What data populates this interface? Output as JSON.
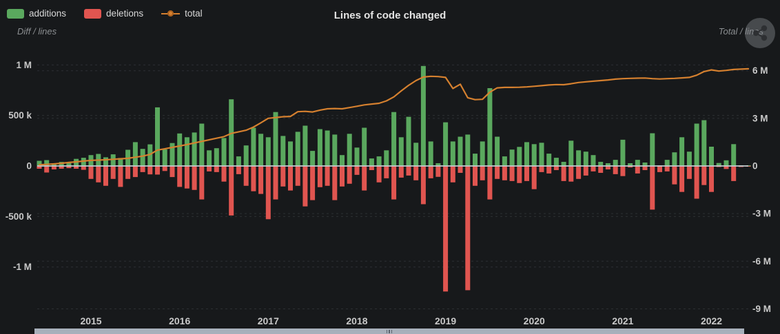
{
  "title": "Lines of code changed",
  "left_axis_name": "Diff / lines",
  "right_axis_name": "Total / lines",
  "legend": {
    "items": [
      {
        "label": "additions",
        "color": "#5aa85e",
        "marker": "square"
      },
      {
        "label": "deletions",
        "color": "#e05550",
        "marker": "square"
      },
      {
        "label": "total",
        "color": "#d5802f",
        "marker": "line-dot"
      }
    ]
  },
  "colors": {
    "background": "#17191b",
    "additions": "#5aa85e",
    "deletions": "#e05550",
    "total": "#d5802f",
    "zero_line": "#c6cad0",
    "grid": "#2d3034",
    "tick_text": "#c9c9c9",
    "scrollbar": "#a8b0bb"
  },
  "chart_data": {
    "type": "bar",
    "title": "Lines of code changed",
    "xlabel": "",
    "ylabel_left": "Diff / lines",
    "ylabel_right": "Total / lines",
    "grid": "dashed horizontal",
    "legend_position": "top-left",
    "left_axis": {
      "name": "Diff / lines",
      "unit": "lines",
      "ticks": [
        "1 M",
        "500 k",
        "0",
        "-500 k",
        "-1 M"
      ],
      "tick_values": [
        1000,
        500,
        0,
        -500,
        -1000
      ],
      "range_k": [
        -1400,
        1150
      ]
    },
    "right_axis": {
      "name": "Total / lines",
      "unit": "lines",
      "ticks": [
        "6 M",
        "3 M",
        "0",
        "-3 M",
        "-6 M",
        "-9 M"
      ],
      "tick_values": [
        6,
        3,
        0,
        -3,
        -6,
        -9
      ],
      "range_M": [
        -9.6,
        7.0
      ]
    },
    "x_ticks": [
      "2015",
      "2016",
      "2017",
      "2018",
      "2019",
      "2020",
      "2021",
      "2022"
    ],
    "x": [
      "2014-06",
      "2014-07",
      "2014-08",
      "2014-09",
      "2014-10",
      "2014-11",
      "2014-12",
      "2015-01",
      "2015-02",
      "2015-03",
      "2015-04",
      "2015-05",
      "2015-06",
      "2015-07",
      "2015-08",
      "2015-09",
      "2015-10",
      "2015-11",
      "2015-12",
      "2016-01",
      "2016-02",
      "2016-03",
      "2016-04",
      "2016-05",
      "2016-06",
      "2016-07",
      "2016-08",
      "2016-09",
      "2016-10",
      "2016-11",
      "2016-12",
      "2017-01",
      "2017-02",
      "2017-03",
      "2017-04",
      "2017-05",
      "2017-06",
      "2017-07",
      "2017-08",
      "2017-09",
      "2017-10",
      "2017-11",
      "2017-12",
      "2018-01",
      "2018-02",
      "2018-03",
      "2018-04",
      "2018-05",
      "2018-06",
      "2018-07",
      "2018-08",
      "2018-09",
      "2018-10",
      "2018-11",
      "2018-12",
      "2019-01",
      "2019-02",
      "2019-03",
      "2019-04",
      "2019-05",
      "2019-06",
      "2019-07",
      "2019-08",
      "2019-09",
      "2019-10",
      "2019-11",
      "2019-12",
      "2020-01",
      "2020-02",
      "2020-03",
      "2020-04",
      "2020-05",
      "2020-06",
      "2020-07",
      "2020-08",
      "2020-09",
      "2020-10",
      "2020-11",
      "2020-12",
      "2021-01",
      "2021-02",
      "2021-03",
      "2021-04",
      "2021-05",
      "2021-06",
      "2021-07",
      "2021-08",
      "2021-09",
      "2021-10",
      "2021-11",
      "2021-12",
      "2022-01",
      "2022-02",
      "2022-03",
      "2022-04",
      "2022-05",
      "2022-06"
    ],
    "series": [
      {
        "name": "additions",
        "type": "bar",
        "axis": "left",
        "unit": "thousand lines",
        "color": "#5aa85e",
        "values": [
          51,
          58,
          25,
          40,
          29,
          70,
          81,
          108,
          119,
          86,
          115,
          79,
          160,
          236,
          169,
          214,
          580,
          164,
          227,
          322,
          284,
          331,
          419,
          155,
          176,
          277,
          660,
          95,
          203,
          378,
          318,
          284,
          534,
          297,
          243,
          338,
          399,
          149,
          365,
          351,
          311,
          108,
          318,
          182,
          378,
          74,
          95,
          155,
          534,
          284,
          487,
          230,
          990,
          243,
          27,
          432,
          243,
          290,
          311,
          122,
          243,
          770,
          290,
          95,
          162,
          189,
          236,
          216,
          230,
          122,
          81,
          41,
          250,
          155,
          142,
          108,
          41,
          27,
          61,
          260,
          27,
          61,
          34,
          324,
          7,
          61,
          135,
          284,
          142,
          419,
          453,
          191,
          29,
          56,
          216,
          5,
          2
        ]
      },
      {
        "name": "deletions",
        "type": "bar",
        "axis": "left",
        "unit": "thousand lines",
        "color": "#e05550",
        "values": [
          -27,
          -65,
          -34,
          -27,
          -22,
          -27,
          -38,
          -128,
          -162,
          -196,
          -128,
          -207,
          -128,
          -110,
          -61,
          -83,
          -85,
          -50,
          -110,
          -207,
          -223,
          -237,
          -331,
          -54,
          -61,
          -155,
          -490,
          -81,
          -196,
          -250,
          -277,
          -527,
          -331,
          -203,
          -243,
          -196,
          -400,
          -338,
          -210,
          -196,
          -338,
          -203,
          -176,
          -88,
          -243,
          -41,
          -162,
          -122,
          -331,
          -115,
          -95,
          -142,
          -378,
          -122,
          -108,
          -1243,
          -162,
          -68,
          -1230,
          -196,
          -142,
          -331,
          -128,
          -142,
          -149,
          -169,
          -149,
          -230,
          -61,
          -74,
          -41,
          -149,
          -155,
          -128,
          -95,
          -54,
          -68,
          -34,
          -81,
          -100,
          -14,
          -74,
          -41,
          -432,
          -61,
          -54,
          -182,
          -257,
          -128,
          -324,
          -189,
          -257,
          -10,
          -30,
          -149,
          -10,
          -3
        ]
      },
      {
        "name": "total",
        "type": "line",
        "axis": "right",
        "unit": "million lines",
        "color": "#d5802f",
        "values": [
          0.08,
          0.1,
          0.13,
          0.17,
          0.22,
          0.26,
          0.31,
          0.35,
          0.37,
          0.39,
          0.42,
          0.45,
          0.48,
          0.55,
          0.62,
          0.73,
          1.0,
          1.08,
          1.17,
          1.26,
          1.35,
          1.45,
          1.55,
          1.65,
          1.75,
          1.85,
          2.05,
          2.15,
          2.25,
          2.45,
          2.72,
          3.0,
          3.05,
          3.1,
          3.12,
          3.42,
          3.44,
          3.4,
          3.52,
          3.6,
          3.62,
          3.6,
          3.68,
          3.76,
          3.85,
          3.9,
          3.95,
          4.1,
          4.35,
          4.73,
          5.08,
          5.38,
          5.6,
          5.65,
          5.63,
          5.58,
          4.88,
          5.15,
          4.3,
          4.18,
          4.2,
          4.65,
          4.92,
          4.95,
          4.95,
          4.96,
          4.98,
          5.02,
          5.06,
          5.1,
          5.13,
          5.12,
          5.18,
          5.26,
          5.3,
          5.34,
          5.38,
          5.42,
          5.47,
          5.5,
          5.52,
          5.53,
          5.54,
          5.5,
          5.48,
          5.5,
          5.52,
          5.55,
          5.58,
          5.72,
          5.95,
          6.05,
          5.98,
          6.02,
          6.08,
          6.1,
          6.12
        ]
      }
    ]
  },
  "scrollbar": {
    "position": "bottom",
    "span": "100%",
    "grip": "center"
  }
}
